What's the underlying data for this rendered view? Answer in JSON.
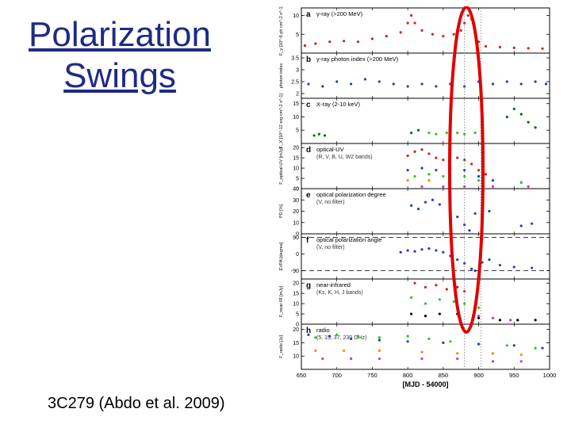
{
  "slide": {
    "title_line1": "Polarization",
    "title_line2": "Swings",
    "caption": "3C279 (Abdo et al. 2009)"
  },
  "chart_data": {
    "type": "scatter",
    "xlabel": "[MJD - 54000]",
    "xlim": [
      650,
      1000
    ],
    "xticks": [
      650,
      700,
      750,
      800,
      850,
      900,
      950,
      1000
    ],
    "highlight_color": "#e00000",
    "marker_lines_mjd": [
      880,
      903
    ],
    "panels": [
      {
        "letter": "a",
        "label": "γ-ray (>200 MeV)",
        "ylabel": "F_γ [10^-6 ph cm^-2 s^-1]",
        "yticks": [
          5,
          10
        ],
        "ylim": [
          0,
          12
        ],
        "series": [
          {
            "color": "#d42020",
            "points": [
              [
                655,
                2
              ],
              [
                670,
                2.5
              ],
              [
                690,
                3
              ],
              [
                710,
                3.2
              ],
              [
                730,
                3
              ],
              [
                750,
                3.8
              ],
              [
                770,
                4.5
              ],
              [
                790,
                5.5
              ],
              [
                800,
                8
              ],
              [
                805,
                10
              ],
              [
                810,
                8
              ],
              [
                820,
                6
              ],
              [
                835,
                5
              ],
              [
                850,
                4.5
              ],
              [
                865,
                5
              ],
              [
                875,
                6
              ],
              [
                880,
                8
              ],
              [
                885,
                10
              ],
              [
                890,
                9
              ],
              [
                895,
                6
              ],
              [
                900,
                3
              ],
              [
                910,
                1.8
              ],
              [
                930,
                1.6
              ],
              [
                950,
                1.4
              ],
              [
                970,
                1.3
              ],
              [
                990,
                1.2
              ]
            ]
          }
        ]
      },
      {
        "letter": "b",
        "label": "γ-ray photon index (>200 MeV)",
        "ylabel": "photon index",
        "yticks": [
          2,
          2.5,
          3,
          3.5
        ],
        "ylim": [
          1.8,
          3.7
        ],
        "series": [
          {
            "color": "#1e3fc8",
            "points": [
              [
                660,
                2.4
              ],
              [
                680,
                2.3
              ],
              [
                700,
                2.5
              ],
              [
                720,
                2.4
              ],
              [
                740,
                2.6
              ],
              [
                760,
                2.5
              ],
              [
                780,
                2.4
              ],
              [
                800,
                2.3
              ],
              [
                820,
                2.4
              ],
              [
                840,
                2.3
              ],
              [
                860,
                2.4
              ],
              [
                880,
                2.3
              ],
              [
                900,
                2.5
              ],
              [
                920,
                2.4
              ],
              [
                940,
                2.5
              ],
              [
                960,
                2.4
              ],
              [
                980,
                2.5
              ],
              [
                995,
                2.4
              ]
            ]
          }
        ]
      },
      {
        "letter": "c",
        "label": "X-ray (2-10 keV)",
        "ylabel": "F_X [10^-12 erg cm^-2 s^-1]",
        "yticks": [
          5,
          10,
          15
        ],
        "ylim": [
          0,
          17
        ],
        "series": [
          {
            "color": "#116611",
            "points": [
              [
                668,
                3
              ],
              [
                675,
                3.5
              ],
              [
                683,
                3
              ],
              [
                805,
                4
              ],
              [
                815,
                5
              ],
              [
                940,
                10
              ],
              [
                950,
                13
              ],
              [
                960,
                11
              ],
              [
                970,
                8
              ],
              [
                980,
                6
              ]
            ]
          },
          {
            "color": "#22cc22",
            "points": [
              [
                830,
                4
              ],
              [
                840,
                3.5
              ],
              [
                855,
                4
              ],
              [
                870,
                4
              ],
              [
                880,
                3.5
              ],
              [
                895,
                4
              ],
              [
                905,
                3.5
              ]
            ]
          }
        ]
      },
      {
        "letter": "d",
        "label": "optical-UV",
        "sublabel": "(R, V, B, U, W2 bands)",
        "ylabel": "F_optical-UV [mJy]",
        "yticks": [
          0,
          5,
          10,
          15,
          20
        ],
        "ylim": [
          0,
          22
        ],
        "series": [
          {
            "color": "#d42020",
            "points": [
              [
                800,
                16
              ],
              [
                810,
                18
              ],
              [
                820,
                19
              ],
              [
                830,
                17
              ],
              [
                840,
                15
              ],
              [
                850,
                14
              ],
              [
                860,
                16
              ],
              [
                870,
                15
              ],
              [
                880,
                14
              ],
              [
                890,
                12
              ],
              [
                900,
                9
              ],
              [
                910,
                7
              ]
            ]
          },
          {
            "color": "#1e3fc8",
            "points": [
              [
                800,
                9
              ],
              [
                820,
                10
              ],
              [
                840,
                9
              ],
              [
                860,
                10
              ],
              [
                880,
                9
              ],
              [
                900,
                6
              ],
              [
                920,
                4
              ],
              [
                960,
                3
              ]
            ]
          },
          {
            "color": "#22cc22",
            "points": [
              [
                810,
                6
              ],
              [
                830,
                7
              ],
              [
                850,
                6
              ],
              [
                880,
                6
              ],
              [
                900,
                4
              ],
              [
                960,
                3
              ]
            ]
          },
          {
            "color": "#ff8800",
            "points": [
              [
                800,
                4
              ],
              [
                830,
                4
              ]
            ]
          },
          {
            "color": "#cc33cc",
            "points": [
              [
                820,
                1
              ],
              [
                850,
                1
              ],
              [
                880,
                1
              ],
              [
                920,
                1
              ],
              [
                970,
                1
              ]
            ]
          }
        ]
      },
      {
        "letter": "e",
        "label": "optical polarization degree",
        "sublabel": "(V, no filter)",
        "ylabel": "PD [%]",
        "yticks": [
          0,
          10,
          20,
          30,
          40
        ],
        "ylim": [
          0,
          40
        ],
        "series": [
          {
            "color": "#1e3fc8",
            "points": [
              [
                805,
                25
              ],
              [
                815,
                22
              ],
              [
                825,
                28
              ],
              [
                835,
                30
              ],
              [
                845,
                26
              ],
              [
                860,
                22
              ],
              [
                870,
                15
              ],
              [
                880,
                8
              ],
              [
                887,
                3
              ],
              [
                895,
                18
              ],
              [
                905,
                25
              ],
              [
                915,
                20
              ],
              [
                960,
                7
              ],
              [
                975,
                9
              ]
            ]
          }
        ]
      },
      {
        "letter": "f",
        "label": "optical polarization angle",
        "sublabel": "(V, no filter)",
        "ylabel": "EVPA [degree]",
        "yticks": [
          -90,
          0,
          90
        ],
        "ylim": [
          -135,
          110
        ],
        "series": [
          {
            "color": "#1e3fc8",
            "points": [
              [
                790,
                10
              ],
              [
                800,
                20
              ],
              [
                810,
                15
              ],
              [
                820,
                25
              ],
              [
                830,
                30
              ],
              [
                840,
                20
              ],
              [
                850,
                10
              ],
              [
                860,
                -10
              ],
              [
                870,
                -30
              ],
              [
                880,
                -50
              ],
              [
                890,
                -80
              ],
              [
                895,
                -90
              ],
              [
                905,
                -45
              ],
              [
                915,
                -30
              ],
              [
                930,
                -60
              ],
              [
                950,
                -70
              ],
              [
                975,
                -75
              ]
            ]
          }
        ]
      },
      {
        "letter": "g",
        "label": "near-infrared",
        "sublabel": "(Ks, K, H, J bands)",
        "ylabel": "F_near-IR [mJy]",
        "yticks": [
          0,
          5,
          10,
          15,
          20
        ],
        "ylim": [
          0,
          22
        ],
        "series": [
          {
            "color": "#d42020",
            "points": [
              [
                810,
                20
              ],
              [
                825,
                18
              ],
              [
                840,
                19
              ],
              [
                855,
                17
              ],
              [
                870,
                18
              ],
              [
                880,
                16
              ]
            ]
          },
          {
            "color": "#22cc22",
            "points": [
              [
                805,
                13
              ],
              [
                825,
                10
              ],
              [
                845,
                12
              ],
              [
                865,
                11
              ],
              [
                880,
                10
              ],
              [
                900,
                8
              ]
            ]
          },
          {
            "color": "#000000",
            "points": [
              [
                805,
                5
              ],
              [
                825,
                4
              ],
              [
                845,
                5
              ],
              [
                870,
                5
              ],
              [
                900,
                3
              ],
              [
                930,
                2
              ],
              [
                955,
                2
              ],
              [
                980,
                2
              ]
            ]
          },
          {
            "color": "#cc33cc",
            "points": [
              [
                900,
                4
              ],
              [
                920,
                3
              ],
              [
                945,
                2
              ]
            ]
          }
        ]
      },
      {
        "letter": "h",
        "label": "radio",
        "sublabel": "(5, 15, 37, 230 GHz)",
        "ylabel": "F_radio [Jy]",
        "yticks": [
          10,
          15,
          20
        ],
        "ylim": [
          5,
          22
        ],
        "series": [
          {
            "color": "#22cc22",
            "points": [
              [
                670,
                17
              ],
              [
                700,
                18
              ],
              [
                730,
                17.5
              ],
              [
                760,
                17
              ],
              [
                800,
                17.5
              ],
              [
                830,
                16.5
              ],
              [
                860,
                15.5
              ],
              [
                900,
                14.5
              ],
              [
                940,
                14
              ],
              [
                980,
                13
              ]
            ]
          },
          {
            "color": "#1e3fc8",
            "points": [
              [
                660,
                18
              ],
              [
                690,
                17.5
              ],
              [
                720,
                16.5
              ],
              [
                760,
                16
              ],
              [
                800,
                15.5
              ],
              [
                850,
                15
              ],
              [
                900,
                14.5
              ],
              [
                950,
                14
              ],
              [
                990,
                13
              ]
            ]
          },
          {
            "color": "#ff8800",
            "points": [
              [
                670,
                12
              ],
              [
                710,
                12
              ],
              [
                760,
                12
              ],
              [
                820,
                11.5
              ],
              [
                870,
                11
              ],
              [
                920,
                11
              ],
              [
                960,
                10.5
              ]
            ]
          },
          {
            "color": "#cc33cc",
            "points": [
              [
                680,
                9
              ],
              [
                720,
                9
              ],
              [
                760,
                9
              ],
              [
                820,
                9
              ],
              [
                870,
                9
              ],
              [
                920,
                8
              ],
              [
                960,
                8
              ]
            ]
          }
        ]
      }
    ]
  }
}
